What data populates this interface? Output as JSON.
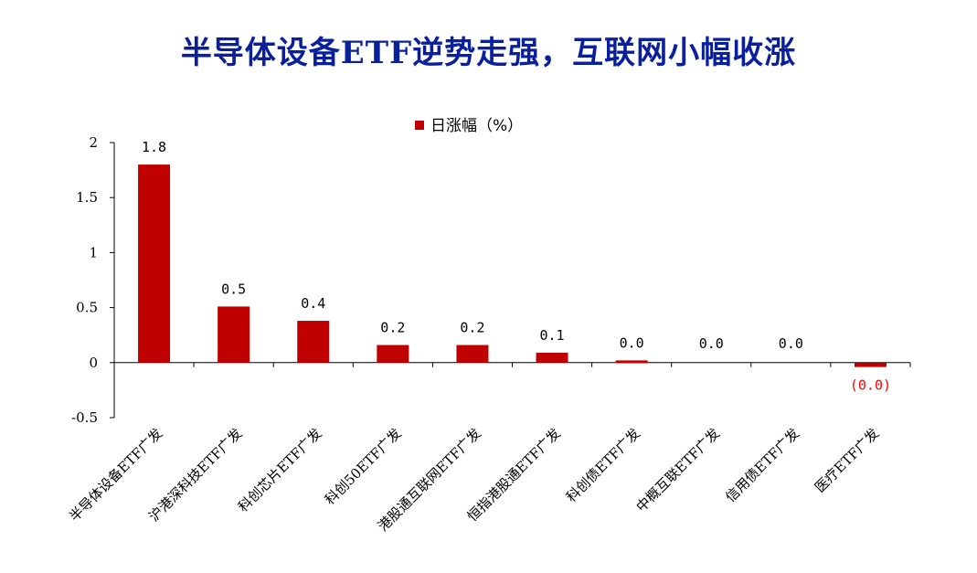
{
  "title": "半导体设备ETF逆势走强，互联网小幅收涨",
  "colors": {
    "title": "#0a1f9c",
    "bar": "#c00000",
    "negative_label": "#ff0000",
    "axis": "#000000"
  },
  "chart_data": {
    "type": "bar",
    "title": "",
    "xlabel": "",
    "ylabel": "",
    "legend": {
      "label": "日涨幅（%）",
      "position": "top-center"
    },
    "categories": [
      "半导体设备ETF广发",
      "沪港深科技ETF广发",
      "科创芯片ETF广发",
      "科创50ETF广发",
      "港股通互联网ETF广发",
      "恒指港股通ETF广发",
      "科创债ETF广发",
      "中概互联ETF广发",
      "信用债ETF广发",
      "医疗ETF广发"
    ],
    "series": [
      {
        "name": "日涨幅（%）",
        "values": [
          1.8,
          0.51,
          0.38,
          0.16,
          0.16,
          0.09,
          0.02,
          0.0,
          0.0,
          -0.04
        ],
        "labels": [
          "1.8",
          "0.5",
          "0.4",
          "0.2",
          "0.2",
          "0.1",
          "0.0",
          "0.0",
          "0.0",
          "(0.0)"
        ]
      }
    ],
    "yticks": [
      "2",
      "1.5",
      "1",
      "0.5",
      "0",
      "-0.5"
    ],
    "ylim": [
      -0.5,
      2
    ],
    "grid": false
  }
}
